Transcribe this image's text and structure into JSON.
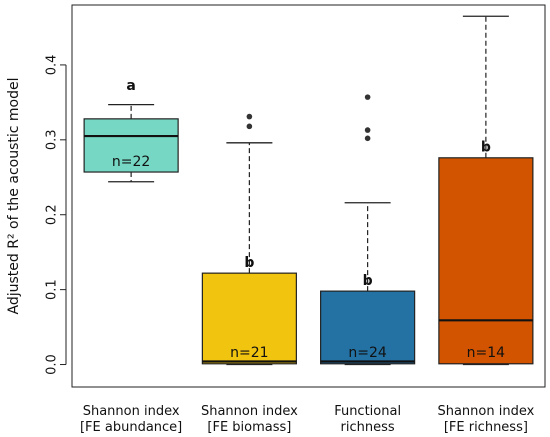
{
  "chart_data": {
    "type": "boxplot",
    "title": "",
    "ylabel": "Adjusted R² of the acoustic model",
    "xlabel": "",
    "ylim": [
      -0.03,
      0.48
    ],
    "yticks": [
      "0.0",
      "0.1",
      "0.2",
      "0.3",
      "0.4"
    ],
    "ytick_values": [
      0.0,
      0.1,
      0.2,
      0.3,
      0.4
    ],
    "grid": false,
    "categories": [
      {
        "line1": "Shannon index",
        "line2": "[FE abundance]"
      },
      {
        "line1": "Shannon index",
        "line2": "[FE biomass]"
      },
      {
        "line1": "Functional",
        "line2": "richness"
      },
      {
        "line1": "Shannon index",
        "line2": "[FE richness]"
      }
    ],
    "boxes": [
      {
        "whisker_low": 0.244,
        "q1": 0.257,
        "median": 0.305,
        "q3": 0.328,
        "whisker_high": 0.347,
        "outliers": [],
        "color": "#76D7C4",
        "n_label": "n=22",
        "letter": "a",
        "letter_y": 0.373,
        "n_y": 0.261
      },
      {
        "whisker_low": 0.0,
        "q1": 0.001,
        "median": 0.004,
        "q3": 0.122,
        "whisker_high": 0.296,
        "outliers": [
          0.318,
          0.331
        ],
        "color": "#F1C40F",
        "n_label": "n=21",
        "letter": "b",
        "letter_y": 0.137,
        "n_y": 0.006
      },
      {
        "whisker_low": 0.0,
        "q1": 0.001,
        "median": 0.004,
        "q3": 0.098,
        "whisker_high": 0.216,
        "outliers": [
          0.302,
          0.313,
          0.357
        ],
        "color": "#2471A3",
        "n_label": "n=24",
        "letter": "b",
        "letter_y": 0.113,
        "n_y": 0.006
      },
      {
        "whisker_low": 0.0,
        "q1": 0.001,
        "median": 0.059,
        "q3": 0.276,
        "whisker_high": 0.465,
        "outliers": [],
        "color": "#D35400",
        "n_label": "n=14",
        "letter": "b",
        "letter_y": 0.291,
        "n_y": 0.006
      }
    ]
  }
}
